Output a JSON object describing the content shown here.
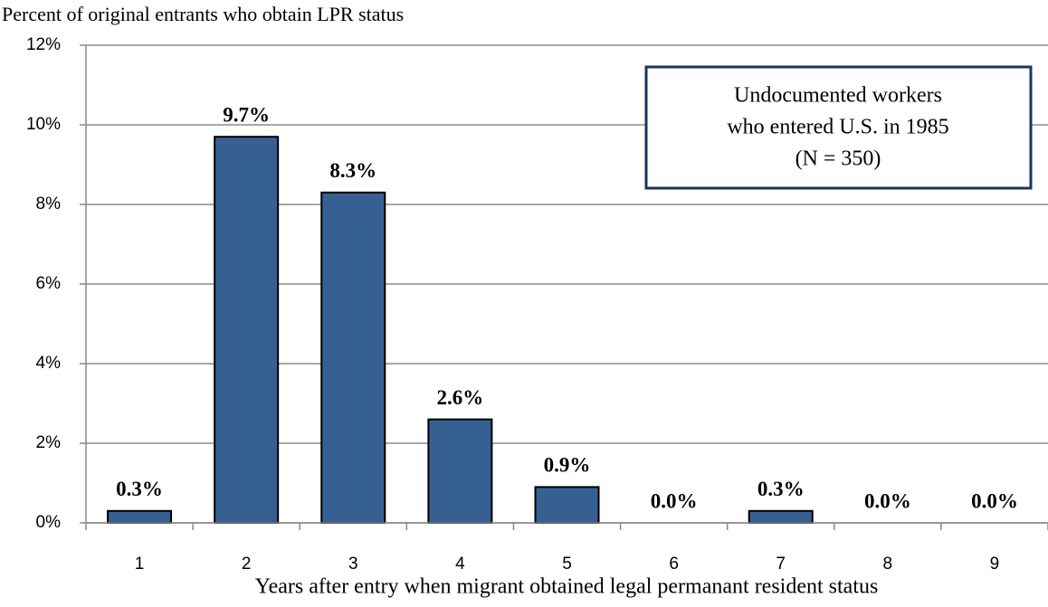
{
  "chart_data": {
    "type": "bar",
    "title": "Percent of original entrants who obtain LPR status",
    "x_label": "Years after entry when migrant obtained legal permanant resident status",
    "annotation": [
      "Undocumented workers",
      "who entered U.S. in 1985",
      "(N = 350)"
    ],
    "categories": [
      "1",
      "2",
      "3",
      "4",
      "5",
      "6",
      "7",
      "8",
      "9"
    ],
    "values": [
      0.3,
      9.7,
      8.3,
      2.6,
      0.9,
      0.0,
      0.3,
      0.0,
      0.0
    ],
    "value_labels": [
      "0.3%",
      "9.7%",
      "8.3%",
      "2.6%",
      "0.9%",
      "0.0%",
      "0.3%",
      "0.0%",
      "0.0%"
    ],
    "color": "#376092",
    "ylim": [
      0,
      12
    ],
    "yticks": [
      {
        "value": 0,
        "label": "0%"
      },
      {
        "value": 2,
        "label": "2%"
      },
      {
        "value": 4,
        "label": "4%"
      },
      {
        "value": 6,
        "label": "6%"
      },
      {
        "value": 8,
        "label": "8%"
      },
      {
        "value": 10,
        "label": "10%"
      },
      {
        "value": 12,
        "label": "12%"
      }
    ],
    "grid": true
  }
}
